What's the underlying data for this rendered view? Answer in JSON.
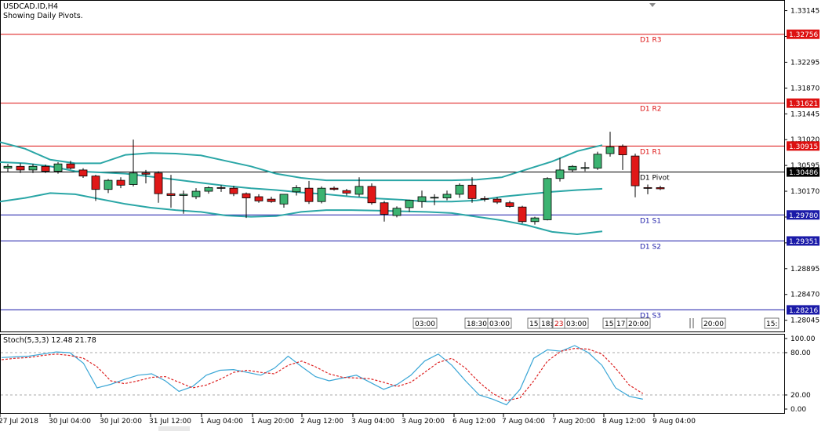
{
  "header": {
    "symbol": "USDCAD.ID,H4",
    "subtitle": "Showing Daily Pivots."
  },
  "price_axis": {
    "ticks": [
      "1.33145",
      "1.32720",
      "1.32295",
      "1.31870",
      "1.31445",
      "1.31020",
      "1.30595",
      "1.30170",
      "1.29745",
      "1.29320",
      "1.28895",
      "1.28470",
      "1.28045"
    ],
    "current_price": "1.30486"
  },
  "pivots": [
    {
      "label": "D1 R3",
      "value": "1.32756",
      "color": "#dd1111"
    },
    {
      "label": "D1 R2",
      "value": "1.31621",
      "color": "#dd1111"
    },
    {
      "label": "D1 R1",
      "value": "1.30915",
      "color": "#dd1111"
    },
    {
      "label": "D1 Pivot",
      "value": "1.30486",
      "color": "#000000"
    },
    {
      "label": "D1 S1",
      "value": "1.29780",
      "color": "#1a1aa8"
    },
    {
      "label": "D1 S2",
      "value": "1.29351",
      "color": "#1a1aa8"
    },
    {
      "label": "D1 S3",
      "value": "1.28216",
      "color": "#1a1aa8"
    }
  ],
  "session_labels": [
    {
      "text": "03:00",
      "color": "#000"
    },
    {
      "text": "18:30",
      "color": "#000"
    },
    {
      "text": "03:00",
      "color": "#000"
    },
    {
      "text": "15:",
      "color": "#000"
    },
    {
      "text": "18:",
      "color": "#000"
    },
    {
      "text": "23:",
      "color": "#cc0000"
    },
    {
      "text": "03:00",
      "color": "#000"
    },
    {
      "text": "15:",
      "color": "#000"
    },
    {
      "text": "17:",
      "color": "#000"
    },
    {
      "text": "20:00",
      "color": "#000"
    },
    {
      "text": "20:00",
      "color": "#000"
    },
    {
      "text": "15:",
      "color": "#000"
    }
  ],
  "stoch": {
    "label": "Stoch(5,3,3) 12.48 21.78",
    "ticks": [
      "100.00",
      "80.00",
      "20.00",
      "0.00"
    ]
  },
  "time_axis": [
    "27 Jul 2018",
    "30 Jul 04:00",
    "30 Jul 20:00",
    "31 Jul 12:00",
    "1 Aug 04:00",
    "1 Aug 20:00",
    "2 Aug 12:00",
    "3 Aug 04:00",
    "3 Aug 20:00",
    "6 Aug 12:00",
    "7 Aug 04:00",
    "7 Aug 20:00",
    "8 Aug 12:00",
    "9 Aug 04:00"
  ],
  "colors": {
    "bull": "#3cb371",
    "bear": "#e01818",
    "band": "#2aa6a6",
    "stoch_main": "#3aa6d6",
    "stoch_signal": "#dd2222"
  },
  "chart_data": {
    "type": "candlestick",
    "symbol": "USDCAD.ID",
    "timeframe": "H4",
    "candles": [
      {
        "o": 1.3055,
        "h": 1.3062,
        "l": 1.3048,
        "c": 1.3058
      },
      {
        "o": 1.3058,
        "h": 1.3063,
        "l": 1.3047,
        "c": 1.3052
      },
      {
        "o": 1.3052,
        "h": 1.3062,
        "l": 1.3047,
        "c": 1.3058
      },
      {
        "o": 1.3058,
        "h": 1.3061,
        "l": 1.3047,
        "c": 1.305
      },
      {
        "o": 1.305,
        "h": 1.3065,
        "l": 1.3046,
        "c": 1.3062
      },
      {
        "o": 1.3062,
        "h": 1.3067,
        "l": 1.3053,
        "c": 1.3055
      },
      {
        "o": 1.3052,
        "h": 1.3055,
        "l": 1.3039,
        "c": 1.3042
      },
      {
        "o": 1.3042,
        "h": 1.3044,
        "l": 1.3001,
        "c": 1.302
      },
      {
        "o": 1.302,
        "h": 1.3037,
        "l": 1.3014,
        "c": 1.3035
      },
      {
        "o": 1.3035,
        "h": 1.304,
        "l": 1.3022,
        "c": 1.3027
      },
      {
        "o": 1.3028,
        "h": 1.3102,
        "l": 1.3025,
        "c": 1.3047
      },
      {
        "o": 1.3047,
        "h": 1.3052,
        "l": 1.303,
        "c": 1.3045
      },
      {
        "o": 1.3047,
        "h": 1.305,
        "l": 1.2998,
        "c": 1.3013
      },
      {
        "o": 1.3013,
        "h": 1.3044,
        "l": 1.299,
        "c": 1.301
      },
      {
        "o": 1.301,
        "h": 1.3018,
        "l": 1.298,
        "c": 1.3012
      },
      {
        "o": 1.3008,
        "h": 1.3022,
        "l": 1.3004,
        "c": 1.3017
      },
      {
        "o": 1.3017,
        "h": 1.3025,
        "l": 1.3013,
        "c": 1.3023
      },
      {
        "o": 1.3023,
        "h": 1.3027,
        "l": 1.3016,
        "c": 1.3022
      },
      {
        "o": 1.3022,
        "h": 1.3026,
        "l": 1.3009,
        "c": 1.3013
      },
      {
        "o": 1.3013,
        "h": 1.3015,
        "l": 1.2973,
        "c": 1.3006
      },
      {
        "o": 1.3008,
        "h": 1.3012,
        "l": 1.2998,
        "c": 1.3001
      },
      {
        "o": 1.3004,
        "h": 1.3008,
        "l": 1.2998,
        "c": 1.3
      },
      {
        "o": 1.2996,
        "h": 1.3012,
        "l": 1.299,
        "c": 1.3012
      },
      {
        "o": 1.3016,
        "h": 1.3027,
        "l": 1.301,
        "c": 1.3023
      },
      {
        "o": 1.3022,
        "h": 1.3034,
        "l": 1.2996,
        "c": 1.3
      },
      {
        "o": 1.3,
        "h": 1.3025,
        "l": 1.2997,
        "c": 1.3022
      },
      {
        "o": 1.3022,
        "h": 1.3025,
        "l": 1.3018,
        "c": 1.302
      },
      {
        "o": 1.3018,
        "h": 1.3021,
        "l": 1.301,
        "c": 1.3014
      },
      {
        "o": 1.3012,
        "h": 1.304,
        "l": 1.3008,
        "c": 1.3025
      },
      {
        "o": 1.3025,
        "h": 1.303,
        "l": 1.2995,
        "c": 1.2998
      },
      {
        "o": 1.2998,
        "h": 1.3001,
        "l": 1.2967,
        "c": 1.2979
      },
      {
        "o": 1.2977,
        "h": 1.2992,
        "l": 1.2974,
        "c": 1.2989
      },
      {
        "o": 1.299,
        "h": 1.3003,
        "l": 1.2983,
        "c": 1.3002
      },
      {
        "o": 1.3,
        "h": 1.3018,
        "l": 1.299,
        "c": 1.3008
      },
      {
        "o": 1.3006,
        "h": 1.3012,
        "l": 1.2994,
        "c": 1.3007
      },
      {
        "o": 1.3006,
        "h": 1.3018,
        "l": 1.3002,
        "c": 1.3012
      },
      {
        "o": 1.3012,
        "h": 1.303,
        "l": 1.3006,
        "c": 1.3027
      },
      {
        "o": 1.3027,
        "h": 1.304,
        "l": 1.2998,
        "c": 1.3005
      },
      {
        "o": 1.3005,
        "h": 1.3009,
        "l": 1.3,
        "c": 1.3004
      },
      {
        "o": 1.3004,
        "h": 1.3007,
        "l": 1.2996,
        "c": 1.2999
      },
      {
        "o": 1.2998,
        "h": 1.3001,
        "l": 1.299,
        "c": 1.2992
      },
      {
        "o": 1.2991,
        "h": 1.2993,
        "l": 1.2964,
        "c": 1.2967
      },
      {
        "o": 1.2967,
        "h": 1.2975,
        "l": 1.2962,
        "c": 1.2973
      },
      {
        "o": 1.297,
        "h": 1.304,
        "l": 1.2969,
        "c": 1.3038
      },
      {
        "o": 1.3038,
        "h": 1.3072,
        "l": 1.3033,
        "c": 1.3052
      },
      {
        "o": 1.3052,
        "h": 1.306,
        "l": 1.3048,
        "c": 1.3058
      },
      {
        "o": 1.3055,
        "h": 1.3065,
        "l": 1.305,
        "c": 1.3056
      },
      {
        "o": 1.3055,
        "h": 1.3082,
        "l": 1.3052,
        "c": 1.3078
      },
      {
        "o": 1.3079,
        "h": 1.3115,
        "l": 1.3074,
        "c": 1.309
      },
      {
        "o": 1.3091,
        "h": 1.3094,
        "l": 1.3052,
        "c": 1.3077
      },
      {
        "o": 1.3075,
        "h": 1.3079,
        "l": 1.3007,
        "c": 1.3026
      },
      {
        "o": 1.3023,
        "h": 1.3028,
        "l": 1.3012,
        "c": 1.3022
      },
      {
        "o": 1.3023,
        "h": 1.3026,
        "l": 1.3019,
        "c": 1.3021
      }
    ],
    "bollinger_upper": [
      1.3098,
      1.3087,
      1.3069,
      1.3063,
      1.3063,
      1.3077,
      1.308,
      1.3079,
      1.3076,
      1.3067,
      1.3058,
      1.3046,
      1.3039,
      1.3035,
      1.3035,
      1.3035,
      1.3035,
      1.3035,
      1.3035,
      1.3036,
      1.304,
      1.3053,
      1.3066,
      1.3083,
      1.3093
    ],
    "bollinger_middle": [
      1.3065,
      1.3063,
      1.3058,
      1.305,
      1.3048,
      1.3046,
      1.3041,
      1.3036,
      1.3031,
      1.3026,
      1.3022,
      1.3019,
      1.3015,
      1.3012,
      1.3008,
      1.3005,
      1.3003,
      1.3,
      1.3,
      1.3002,
      1.3008,
      1.3012,
      1.3016,
      1.3019,
      1.3021
    ],
    "bollinger_lower": [
      1.3,
      1.3006,
      1.3014,
      1.3012,
      1.3004,
      1.2996,
      1.299,
      1.2986,
      1.2983,
      1.2977,
      1.2975,
      1.2976,
      1.2983,
      1.2986,
      1.2986,
      1.2985,
      1.2984,
      1.2983,
      1.2981,
      1.2975,
      1.2969,
      1.2961,
      1.295,
      1.2946,
      1.2951
    ],
    "bollinger_x_step": 2,
    "price_range": [
      1.2786,
      1.3332
    ],
    "stoch_main": [
      73,
      74,
      75,
      78,
      81,
      80,
      65,
      30,
      35,
      42,
      48,
      50,
      40,
      25,
      32,
      48,
      55,
      56,
      52,
      48,
      58,
      75,
      60,
      46,
      40,
      44,
      48,
      38,
      28,
      35,
      48,
      68,
      78,
      62,
      40,
      20,
      14,
      6,
      28,
      72,
      84,
      82,
      90,
      80,
      62,
      30,
      18,
      14
    ],
    "stoch_signal": [
      70,
      72,
      73,
      76,
      78,
      76,
      72,
      60,
      40,
      36,
      40,
      45,
      46,
      38,
      30,
      34,
      42,
      52,
      55,
      52,
      50,
      62,
      68,
      60,
      50,
      45,
      44,
      43,
      38,
      32,
      38,
      52,
      66,
      72,
      58,
      38,
      22,
      12,
      16,
      40,
      68,
      82,
      86,
      85,
      78,
      58,
      34,
      22
    ],
    "stoch_range": [
      0,
      100
    ],
    "stoch_levels": [
      80,
      20
    ]
  }
}
